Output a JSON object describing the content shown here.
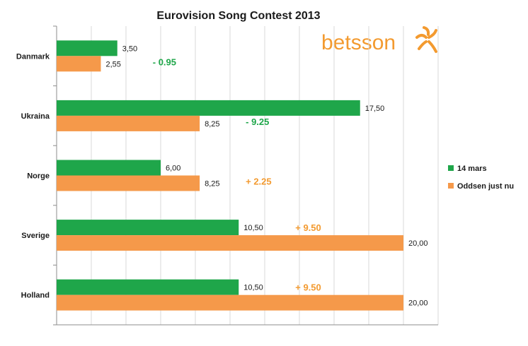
{
  "chart_data": {
    "type": "bar",
    "orientation": "horizontal",
    "title": "Eurovision Song Contest 2013",
    "categories": [
      "Danmark",
      "Ukraina",
      "Norge",
      "Sverige",
      "Holland"
    ],
    "series": [
      {
        "name": "14 mars",
        "color": "#1fa64a",
        "values": [
          3.5,
          17.5,
          6.0,
          10.5,
          10.5
        ],
        "labels": [
          "3,50",
          "17,50",
          "6,00",
          "10,50",
          "10,50"
        ]
      },
      {
        "name": "Oddsen just nu",
        "color": "#f5994a",
        "values": [
          2.55,
          8.25,
          8.25,
          20.0,
          20.0
        ],
        "labels": [
          "2,55",
          "8,25",
          "8,25",
          "20,00",
          "20,00"
        ]
      }
    ],
    "annotations": [
      {
        "category": "Danmark",
        "text": "- 0.95",
        "color": "#1fa64a"
      },
      {
        "category": "Ukraina",
        "text": "- 9.25",
        "color": "#1fa64a"
      },
      {
        "category": "Norge",
        "text": "+ 2.25",
        "color": "#f39a2f"
      },
      {
        "category": "Sverige",
        "text": "+ 9.50",
        "color": "#f39a2f"
      },
      {
        "category": "Holland",
        "text": "+ 9.50",
        "color": "#f39a2f"
      }
    ],
    "xlim": [
      0,
      22
    ],
    "grid": true,
    "legend": "right"
  },
  "brand": {
    "name": "betsson",
    "logo_icon": "betsson-star-icon",
    "color": "#f39a2f"
  }
}
